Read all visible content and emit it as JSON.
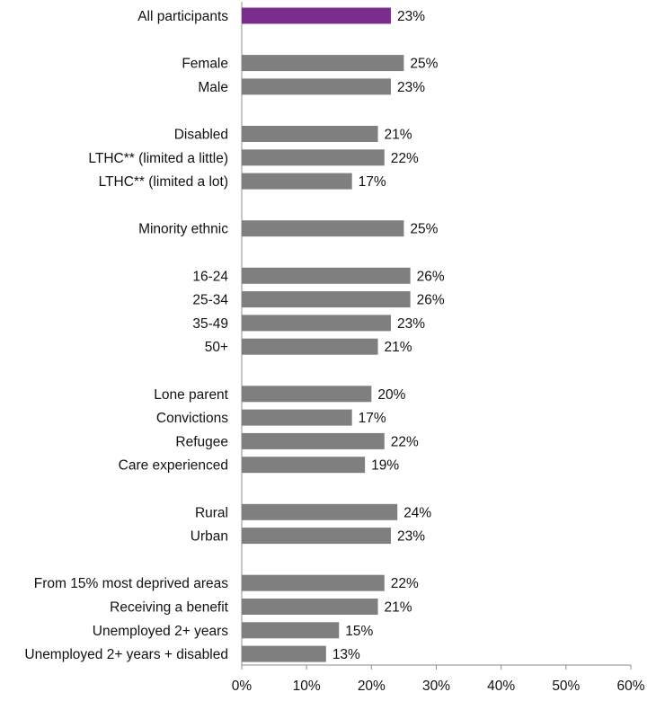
{
  "chart_data": {
    "type": "bar",
    "orientation": "horizontal",
    "title": "",
    "xlabel": "",
    "ylabel": "",
    "xlim": [
      0,
      60
    ],
    "ticks": [
      0,
      10,
      20,
      30,
      40,
      50,
      60
    ],
    "tick_labels": [
      "0%",
      "10%",
      "20%",
      "30%",
      "40%",
      "50%",
      "60%"
    ],
    "grid": false,
    "legend": "none",
    "colors": {
      "highlight": "#7B2D8E",
      "default": "#7F7F7F"
    },
    "groups": [
      {
        "items": [
          {
            "category": "All participants",
            "value": 23,
            "label": "23%",
            "highlight": true
          }
        ]
      },
      {
        "items": [
          {
            "category": "Female",
            "value": 25,
            "label": "25%"
          },
          {
            "category": "Male",
            "value": 23,
            "label": "23%"
          }
        ]
      },
      {
        "items": [
          {
            "category": "Disabled",
            "value": 21,
            "label": "21%"
          },
          {
            "category": "LTHC** (limited a little)",
            "value": 22,
            "label": "22%"
          },
          {
            "category": "LTHC** (limited a lot)",
            "value": 17,
            "label": "17%"
          }
        ]
      },
      {
        "items": [
          {
            "category": "Minority ethnic",
            "value": 25,
            "label": "25%"
          }
        ]
      },
      {
        "items": [
          {
            "category": "16-24",
            "value": 26,
            "label": "26%"
          },
          {
            "category": "25-34",
            "value": 26,
            "label": "26%"
          },
          {
            "category": "35-49",
            "value": 23,
            "label": "23%"
          },
          {
            "category": "50+",
            "value": 21,
            "label": "21%"
          }
        ]
      },
      {
        "items": [
          {
            "category": "Lone parent",
            "value": 20,
            "label": "20%"
          },
          {
            "category": "Convictions",
            "value": 17,
            "label": "17%"
          },
          {
            "category": "Refugee",
            "value": 22,
            "label": "22%"
          },
          {
            "category": "Care experienced",
            "value": 19,
            "label": "19%"
          }
        ]
      },
      {
        "items": [
          {
            "category": "Rural",
            "value": 24,
            "label": "24%"
          },
          {
            "category": "Urban",
            "value": 23,
            "label": "23%"
          }
        ]
      },
      {
        "items": [
          {
            "category": "From 15% most deprived areas",
            "value": 22,
            "label": "22%"
          },
          {
            "category": "Receiving a benefit",
            "value": 21,
            "label": "21%"
          },
          {
            "category": "Unemployed 2+ years",
            "value": 15,
            "label": "15%"
          },
          {
            "category": "Unemployed 2+ years + disabled",
            "value": 13,
            "label": "13%"
          }
        ]
      }
    ]
  }
}
